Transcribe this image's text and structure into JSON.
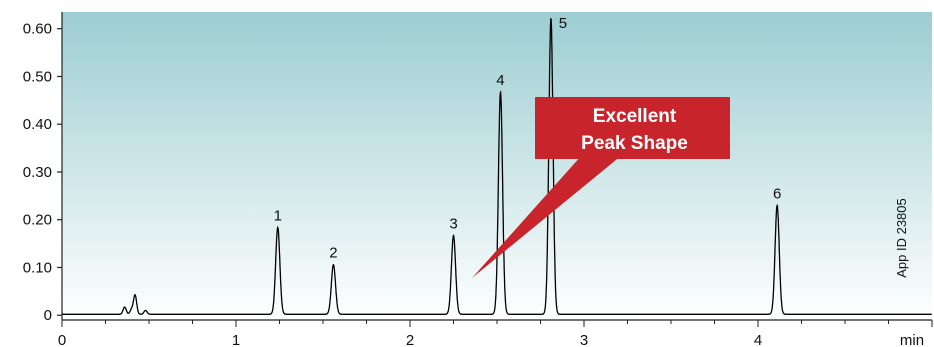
{
  "chart_data": {
    "type": "line",
    "xlabel": "min",
    "ylabel": "",
    "xlim": [
      0,
      5.0
    ],
    "ylim": [
      -0.01,
      0.635
    ],
    "x_ticks": [
      0,
      1,
      2,
      3,
      4
    ],
    "x_tick_labels": [
      "0",
      "1",
      "2",
      "3",
      "4"
    ],
    "y_ticks": [
      0,
      0.1,
      0.2,
      0.3,
      0.4,
      0.5,
      0.6
    ],
    "y_tick_labels": [
      "0",
      "0.10",
      "0.20",
      "0.30",
      "0.40",
      "0.50",
      "0.60"
    ],
    "baseline": 0.002,
    "peaks": [
      {
        "label": "1",
        "x": 1.24,
        "y": 0.182
      },
      {
        "label": "2",
        "x": 1.56,
        "y": 0.104
      },
      {
        "label": "3",
        "x": 2.25,
        "y": 0.165
      },
      {
        "label": "4",
        "x": 2.52,
        "y": 0.465
      },
      {
        "label": "5",
        "x": 2.81,
        "y": 0.62
      },
      {
        "label": "6",
        "x": 4.11,
        "y": 0.228
      }
    ],
    "minor_peaks": [
      {
        "x": 0.36,
        "y": 0.015
      },
      {
        "x": 0.4,
        "y": 0.01
      },
      {
        "x": 0.42,
        "y": 0.04
      },
      {
        "x": 0.48,
        "y": 0.008
      }
    ],
    "annotation": "Excellent Peak Shape",
    "side_label": "App ID 23805",
    "grid": false,
    "colors": {
      "background_top": "#9ccdd1",
      "background_bottom": "#ffffff",
      "callout": "#c8242b",
      "line": "#000000"
    }
  },
  "callout": {
    "line1": "Excellent",
    "line2": "Peak Shape"
  }
}
